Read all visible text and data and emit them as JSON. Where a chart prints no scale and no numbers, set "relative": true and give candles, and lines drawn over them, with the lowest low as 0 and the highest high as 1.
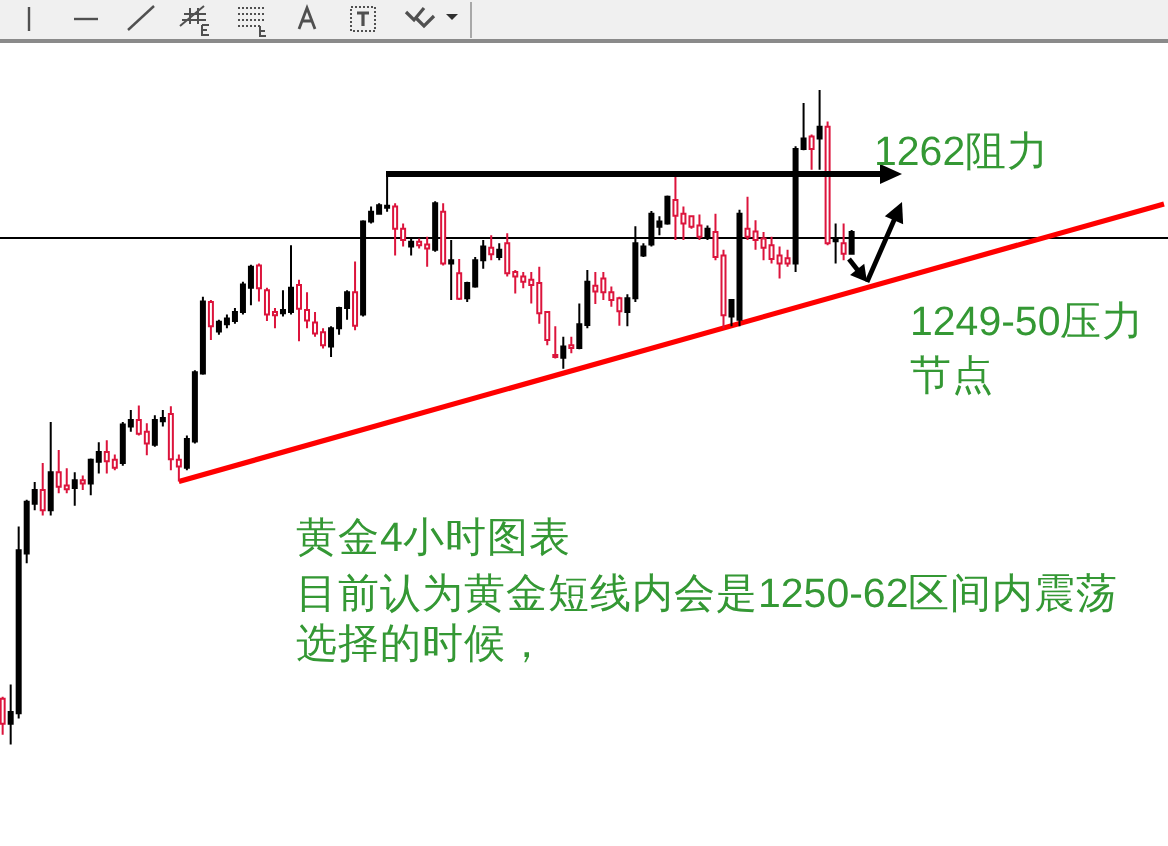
{
  "chart_data": {
    "type": "candlestick",
    "relative": true,
    "title": "黄金4小时图表",
    "annotations": [
      "1262阻力",
      "1249-50压力节点",
      "目前认为黄金短线内会是1250-62区间内震荡选择的时候，"
    ],
    "categories": [
      null,
      null,
      null,
      null,
      null,
      null,
      null,
      null,
      null,
      null,
      null,
      null,
      null,
      null,
      null,
      null,
      null,
      null,
      null,
      null,
      null,
      null,
      null,
      null,
      null,
      null,
      null,
      null,
      null,
      null,
      null,
      null,
      null,
      null,
      null,
      null,
      null,
      null,
      null,
      null,
      null,
      null,
      null,
      null,
      null,
      null,
      null,
      null,
      null,
      null,
      null,
      null,
      null,
      null,
      null,
      null,
      null,
      null,
      null,
      null,
      null,
      null,
      null,
      null,
      null,
      null,
      null,
      null,
      null,
      null,
      null,
      null,
      null,
      null,
      null,
      null,
      null,
      null,
      null,
      null,
      null,
      null,
      null,
      null,
      null,
      null,
      null,
      null,
      null,
      null,
      null,
      null,
      null,
      null,
      null,
      null,
      null,
      null,
      null,
      null,
      null,
      null,
      null,
      null,
      null,
      null,
      null,
      null,
      null,
      null,
      null,
      null,
      null,
      null,
      null,
      null,
      null,
      null,
      null,
      null,
      null,
      null,
      null,
      null,
      null,
      null,
      null,
      null,
      null,
      null,
      null,
      null,
      null,
      null,
      null,
      null,
      null,
      null,
      null,
      null,
      null,
      null,
      null,
      null,
      null,
      null
    ],
    "ohlc": [
      [
        0.07,
        0.073,
        0.015,
        0.032
      ],
      [
        0.032,
        0.092,
        0,
        0.05
      ],
      [
        0.048,
        0.333,
        0.04,
        0.297
      ],
      [
        0.292,
        0.374,
        0.277,
        0.371
      ],
      [
        0.368,
        0.401,
        0.358,
        0.389
      ],
      [
        0.389,
        0.43,
        0.35,
        0.358
      ],
      [
        0.358,
        0.493,
        0.35,
        0.416
      ],
      [
        0.416,
        0.45,
        0.384,
        0.394
      ],
      [
        0.396,
        0.422,
        0.384,
        0.39
      ],
      [
        0.392,
        0.416,
        0.365,
        0.404
      ],
      [
        0.404,
        0.411,
        0.389,
        0.399
      ],
      [
        0.399,
        0.437,
        0.381,
        0.435
      ],
      [
        0.432,
        0.462,
        0.414,
        0.447
      ],
      [
        0.447,
        0.465,
        0.414,
        0.433
      ],
      [
        0.435,
        0.443,
        0.419,
        0.423
      ],
      [
        0.43,
        0.493,
        0.426,
        0.489
      ],
      [
        0.486,
        0.511,
        0.478,
        0.496
      ],
      [
        0.496,
        0.518,
        0.472,
        0.475
      ],
      [
        0.478,
        0.491,
        0.442,
        0.46
      ],
      [
        0.458,
        0.503,
        0.455,
        0.496
      ],
      [
        0.494,
        0.511,
        0.486,
        0.499
      ],
      [
        0.505,
        0.517,
        0.419,
        0.436
      ],
      [
        0.435,
        0.443,
        0.402,
        0.425
      ],
      [
        0.423,
        0.472,
        0.419,
        0.467
      ],
      [
        0.463,
        0.572,
        0.46,
        0.569
      ],
      [
        0.567,
        0.684,
        0.565,
        0.677
      ],
      [
        0.676,
        0.679,
        0.618,
        0.639
      ],
      [
        0.631,
        0.649,
        0.626,
        0.646
      ],
      [
        0.642,
        0.657,
        0.636,
        0.651
      ],
      [
        0.647,
        0.667,
        0.643,
        0.661
      ],
      [
        0.661,
        0.707,
        0.657,
        0.703
      ],
      [
        0.698,
        0.733,
        0.671,
        0.73
      ],
      [
        0.732,
        0.735,
        0.677,
        0.697
      ],
      [
        0.694,
        0.698,
        0.647,
        0.657
      ],
      [
        0.661,
        0.667,
        0.636,
        0.656
      ],
      [
        0.659,
        0.694,
        0.654,
        0.664
      ],
      [
        0.661,
        0.763,
        0.657,
        0.698
      ],
      [
        0.702,
        0.71,
        0.616,
        0.666
      ],
      [
        0.664,
        0.691,
        0.636,
        0.648
      ],
      [
        0.645,
        0.661,
        0.623,
        0.628
      ],
      [
        0.63,
        0.636,
        0.605,
        0.61
      ],
      [
        0.608,
        0.639,
        0.592,
        0.636
      ],
      [
        0.636,
        0.669,
        0.626,
        0.667
      ],
      [
        0.667,
        0.694,
        0.649,
        0.691
      ],
      [
        0.691,
        0.738,
        0.633,
        0.64
      ],
      [
        0.657,
        0.801,
        0.654,
        0.799
      ],
      [
        0.799,
        0.822,
        0.796,
        0.814
      ],
      [
        0.811,
        0.827,
        0.81,
        0.824
      ],
      [
        0.82,
        0.868,
        0.814,
        0.823
      ],
      [
        0.822,
        0.827,
        0.747,
        0.788
      ],
      [
        0.788,
        0.796,
        0.761,
        0.771
      ],
      [
        0.761,
        0.773,
        0.747,
        0.768
      ],
      [
        0.768,
        0.773,
        0.758,
        0.763
      ],
      [
        0.764,
        0.776,
        0.73,
        0.758
      ],
      [
        0.756,
        0.83,
        0.753,
        0.827
      ],
      [
        0.814,
        0.827,
        0.732,
        0.735
      ],
      [
        0.735,
        0.771,
        0.679,
        0.74
      ],
      [
        0.72,
        0.742,
        0.679,
        0.681
      ],
      [
        0.682,
        0.707,
        0.676,
        0.705
      ],
      [
        0.7,
        0.745,
        0.698,
        0.74
      ],
      [
        0.74,
        0.771,
        0.727,
        0.761
      ],
      [
        0.759,
        0.778,
        0.74,
        0.749
      ],
      [
        0.745,
        0.766,
        0.74,
        0.756
      ],
      [
        0.766,
        0.781,
        0.715,
        0.72
      ],
      [
        0.722,
        0.725,
        0.689,
        0.715
      ],
      [
        0.715,
        0.722,
        0.697,
        0.707
      ],
      [
        0.71,
        0.722,
        0.674,
        0.702
      ],
      [
        0.705,
        0.73,
        0.643,
        0.659
      ],
      [
        0.661,
        0.662,
        0.61,
        0.618
      ],
      [
        0.595,
        0.639,
        0.59,
        0.592
      ],
      [
        0.591,
        0.623,
        0.574,
        0.608
      ],
      [
        0.61,
        0.623,
        0.598,
        0.606
      ],
      [
        0.606,
        0.674,
        0.604,
        0.642
      ],
      [
        0.641,
        0.725,
        0.636,
        0.707
      ],
      [
        0.701,
        0.722,
        0.673,
        0.692
      ],
      [
        0.712,
        0.722,
        0.679,
        0.691
      ],
      [
        0.691,
        0.7,
        0.669,
        0.679
      ],
      [
        0.682,
        0.684,
        0.64,
        0.662
      ],
      [
        0.661,
        0.688,
        0.639,
        0.682
      ],
      [
        0.682,
        0.792,
        0.676,
        0.766
      ],
      [
        0.747,
        0.766,
        0.745,
        0.761
      ],
      [
        0.764,
        0.815,
        0.761,
        0.811
      ],
      [
        0.791,
        0.807,
        0.778,
        0.799
      ],
      [
        0.796,
        0.839,
        0.794,
        0.837
      ],
      [
        0.832,
        0.87,
        0.771,
        0.808
      ],
      [
        0.811,
        0.822,
        0.771,
        0.796
      ],
      [
        0.807,
        0.808,
        0.788,
        0.791
      ],
      [
        0.793,
        0.81,
        0.771,
        0.776
      ],
      [
        0.776,
        0.793,
        0.771,
        0.788
      ],
      [
        0.783,
        0.811,
        0.74,
        0.745
      ],
      [
        0.747,
        0.756,
        0.636,
        0.656
      ],
      [
        0.654,
        0.679,
        0.639,
        0.679
      ],
      [
        0.649,
        0.817,
        0.639,
        0.811
      ],
      [
        0.788,
        0.837,
        0.771,
        0.776
      ],
      [
        0.784,
        0.801,
        0.756,
        0.771
      ],
      [
        0.773,
        0.783,
        0.74,
        0.759
      ],
      [
        0.763,
        0.776,
        0.735,
        0.742
      ],
      [
        0.747,
        0.761,
        0.712,
        0.735
      ],
      [
        0.743,
        0.756,
        0.73,
        0.735
      ],
      [
        0.735,
        0.914,
        0.722,
        0.91
      ],
      [
        0.91,
        0.98,
        0.908,
        0.926
      ],
      [
        0.929,
        0.932,
        0.878,
        0.91
      ],
      [
        0.926,
        1,
        0.878,
        0.944
      ],
      [
        0.944,
        0.952,
        0.763,
        0.766
      ],
      [
        0.769,
        0.796,
        0.735,
        0.771
      ],
      [
        0.766,
        0.796,
        0.74,
        0.75
      ],
      [
        0.75,
        0.786,
        0.749,
        0.783
      ],
      null,
      null,
      null,
      null,
      null,
      null,
      null,
      null,
      null,
      null,
      null,
      null,
      null,
      null,
      null,
      null,
      null,
      null,
      null,
      null,
      null,
      null,
      null,
      null,
      null,
      null,
      null,
      null,
      null,
      null,
      null,
      null,
      null,
      null,
      null,
      null,
      null,
      null,
      null
    ],
    "colors": [
      "#dc143c",
      "#000000",
      "#000000",
      "#000000",
      "#000000",
      "#dc143c",
      "#000000",
      "#dc143c",
      "#dc143c",
      "#000000",
      "#dc143c",
      "#000000",
      "#000000",
      "#dc143c",
      "#dc143c",
      "#000000",
      "#000000",
      "#dc143c",
      "#dc143c",
      "#000000",
      "#000000",
      "#dc143c",
      "#dc143c",
      "#000000",
      "#000000",
      "#000000",
      "#dc143c",
      "#000000",
      "#000000",
      "#000000",
      "#000000",
      "#000000",
      "#dc143c",
      "#dc143c",
      "#dc143c",
      "#000000",
      "#000000",
      "#dc143c",
      "#dc143c",
      "#dc143c",
      "#dc143c",
      "#000000",
      "#000000",
      "#000000",
      "#dc143c",
      "#000000",
      "#000000",
      "#000000",
      "#000000",
      "#dc143c",
      "#dc143c",
      "#000000",
      "#dc143c",
      "#dc143c",
      "#000000",
      "#dc143c",
      "#000000",
      "#dc143c",
      "#000000",
      "#000000",
      "#000000",
      "#dc143c",
      "#000000",
      "#dc143c",
      "#dc143c",
      "#dc143c",
      "#dc143c",
      "#dc143c",
      "#dc143c",
      "#dc143c",
      "#000000",
      "#dc143c",
      "#000000",
      "#000000",
      "#dc143c",
      "#dc143c",
      "#dc143c",
      "#dc143c",
      "#000000",
      "#000000",
      "#000000",
      "#000000",
      "#000000",
      "#000000",
      "#dc143c",
      "#dc143c",
      "#dc143c",
      "#dc143c",
      "#000000",
      "#dc143c",
      "#dc143c",
      "#000000",
      "#000000",
      "#dc143c",
      "#dc143c",
      "#dc143c",
      "#dc143c",
      "#dc143c",
      "#dc143c",
      "#000000",
      "#000000",
      "#dc143c",
      "#000000",
      "#dc143c",
      "#000000",
      "#dc143c",
      "#000000",
      null,
      null,
      null,
      null,
      null,
      null,
      null,
      null,
      null,
      null,
      null,
      null,
      null,
      null,
      null,
      null,
      null,
      null,
      null,
      null,
      null,
      null,
      null,
      null,
      null,
      null,
      null,
      null,
      null,
      null,
      null,
      null,
      null,
      null,
      null,
      null,
      null,
      null,
      null
    ],
    "series": [
      {
        "type": "line",
        "color": "#ff0000",
        "values": [
          null,
          null,
          null,
          null,
          null,
          null,
          null,
          null,
          null,
          null,
          null,
          null,
          null,
          null,
          null,
          null,
          null,
          null,
          null,
          null,
          null,
          null,
          0.402,
          null,
          null,
          null,
          null,
          null,
          null,
          null,
          null,
          null,
          null,
          null,
          null,
          null,
          null,
          null,
          null,
          null,
          null,
          null,
          null,
          null,
          null,
          null,
          null,
          null,
          null,
          null,
          null,
          null,
          null,
          null,
          null,
          null,
          null,
          null,
          null,
          null,
          null,
          null,
          null,
          null,
          null,
          null,
          null,
          null,
          null,
          null,
          null,
          null,
          null,
          null,
          null,
          null,
          null,
          null,
          null,
          null,
          null,
          null,
          null,
          null,
          null,
          null,
          null,
          null,
          null,
          null,
          null,
          null,
          null,
          null,
          null,
          null,
          null,
          null,
          null,
          null,
          null,
          null,
          null,
          null,
          null,
          null,
          null,
          null,
          null,
          null,
          null,
          null,
          null,
          null,
          null,
          null,
          null,
          null,
          null,
          null,
          null,
          null,
          null,
          null,
          null,
          null,
          null,
          null,
          null,
          null,
          null,
          null,
          null,
          null,
          null,
          null,
          null,
          null,
          null,
          null,
          null,
          null,
          null,
          null,
          null,
          0.826
        ]
      }
    ],
    "ref_lines": [
      {
        "axis": "y",
        "value": 0.774,
        "color": "#000000"
      }
    ]
  }
}
